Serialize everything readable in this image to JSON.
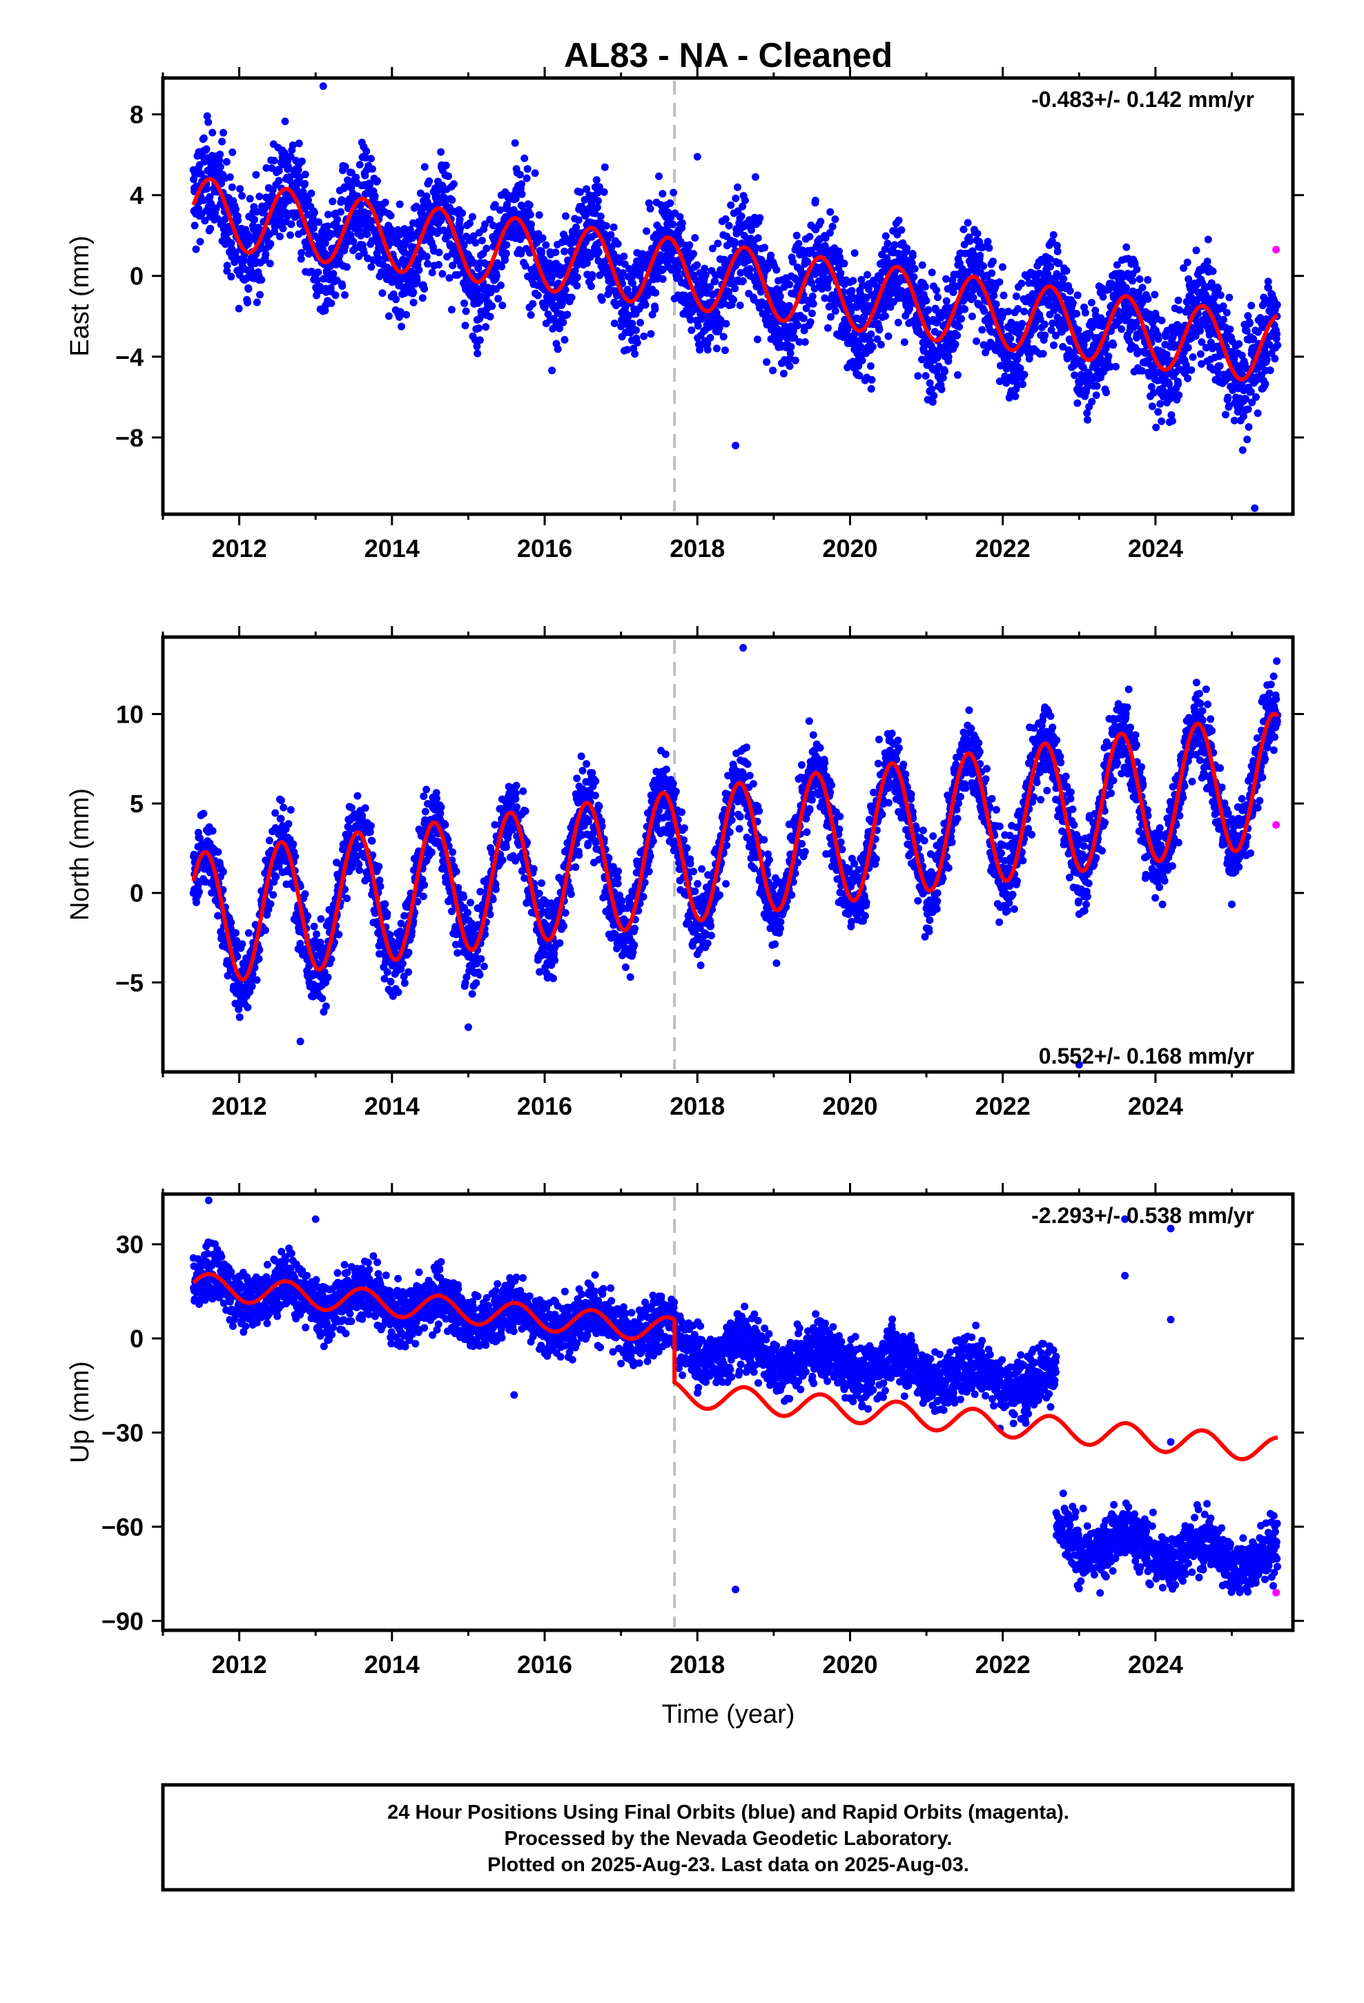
{
  "title": "AL83  - NA - Cleaned",
  "xlabel": "Time (year)",
  "colors": {
    "final": "#0000ff",
    "rapid": "#ff00ff",
    "model": "#ff0000",
    "break": "#c0c0c0"
  },
  "footer": {
    "line1": "24 Hour Positions Using Final Orbits (blue) and Rapid Orbits (magenta).",
    "line2": "Processed by the Nevada Geodetic Laboratory.",
    "line3": "Plotted on 2025-Aug-23. Last data on 2025-Aug-03."
  },
  "chart_data": [
    {
      "type": "scatter",
      "component": "East",
      "ylabel": "East (mm)",
      "rate_label": "-0.483+/- 0.142 mm/yr",
      "xlim": [
        2011.0,
        2025.8
      ],
      "ylim": [
        -11.8,
        9.8
      ],
      "xticks": [
        2012,
        2014,
        2016,
        2018,
        2020,
        2022,
        2024
      ],
      "yticks": [
        8,
        4,
        0,
        -4,
        -8
      ],
      "ytick_labels": [
        "8",
        "4",
        "0",
        "−4",
        "−8"
      ],
      "equipment_change": 2017.7,
      "model": {
        "trend": -0.483,
        "offset_at_2011.4": 3.2,
        "annual_amplitude": 1.7,
        "peak_phase": 0.62,
        "step_at_break": 0
      },
      "scatter": {
        "noise": 1.3
      },
      "outliers": [
        [
          2013.1,
          9.4
        ],
        [
          2018.0,
          5.9
        ],
        [
          2018.5,
          -8.4
        ],
        [
          2025.3,
          -11.5
        ]
      ],
      "rapid_points": [
        [
          2025.58,
          1.3
        ]
      ]
    },
    {
      "type": "scatter",
      "component": "North",
      "ylabel": "North (mm)",
      "rate_label": "0.552+/- 0.168 mm/yr",
      "xlim": [
        2011.0,
        2025.8
      ],
      "ylim": [
        -10.0,
        14.3
      ],
      "xticks": [
        2012,
        2014,
        2016,
        2018,
        2020,
        2022,
        2024
      ],
      "yticks": [
        10,
        5,
        0,
        -5
      ],
      "ytick_labels": [
        "10",
        "5",
        "0",
        "−5"
      ],
      "equipment_change": 2017.7,
      "model": {
        "trend": 0.552,
        "offset_at_2011.4": -1.5,
        "annual_amplitude": 3.7,
        "peak_phase": 0.55,
        "step_at_break": 0
      },
      "scatter": {
        "noise": 1.1
      },
      "outliers": [
        [
          2018.6,
          13.7
        ],
        [
          2012.8,
          -8.3
        ],
        [
          2015.0,
          -7.5
        ],
        [
          2023.0,
          -9.6
        ]
      ],
      "rapid_points": [
        [
          2025.58,
          3.8
        ]
      ]
    },
    {
      "type": "scatter",
      "component": "Up",
      "ylabel": "Up (mm)",
      "rate_label": "-2.293+/- 0.538 mm/yr",
      "xlim": [
        2011.0,
        2025.8
      ],
      "ylim": [
        -93,
        46
      ],
      "xticks": [
        2012,
        2014,
        2016,
        2018,
        2020,
        2022,
        2024
      ],
      "yticks": [
        30,
        0,
        -30,
        -60,
        -90
      ],
      "ytick_labels": [
        "30",
        "0",
        "−30",
        "−60",
        "−90"
      ],
      "equipment_change": 2017.7,
      "model": {
        "trend": -2.293,
        "offset_at_2011.4": 17,
        "annual_amplitude": 4.0,
        "peak_phase": 0.62,
        "step_at_break": -20
      },
      "scatter": {
        "noise": 4.5,
        "segments": [
          [
            2011.4,
            2017.7,
            "model"
          ],
          [
            2017.7,
            2022.7,
            "model+15"
          ],
          [
            2022.7,
            2025.6,
            "model-35"
          ]
        ]
      },
      "outliers": [
        [
          2011.6,
          44
        ],
        [
          2013.0,
          38
        ],
        [
          2015.6,
          -18
        ],
        [
          2018.5,
          -80
        ],
        [
          2023.6,
          38
        ],
        [
          2023.6,
          20
        ],
        [
          2024.2,
          35
        ],
        [
          2024.2,
          6
        ],
        [
          2024.2,
          -33
        ]
      ],
      "rapid_points": [
        [
          2025.58,
          -81
        ]
      ]
    }
  ]
}
